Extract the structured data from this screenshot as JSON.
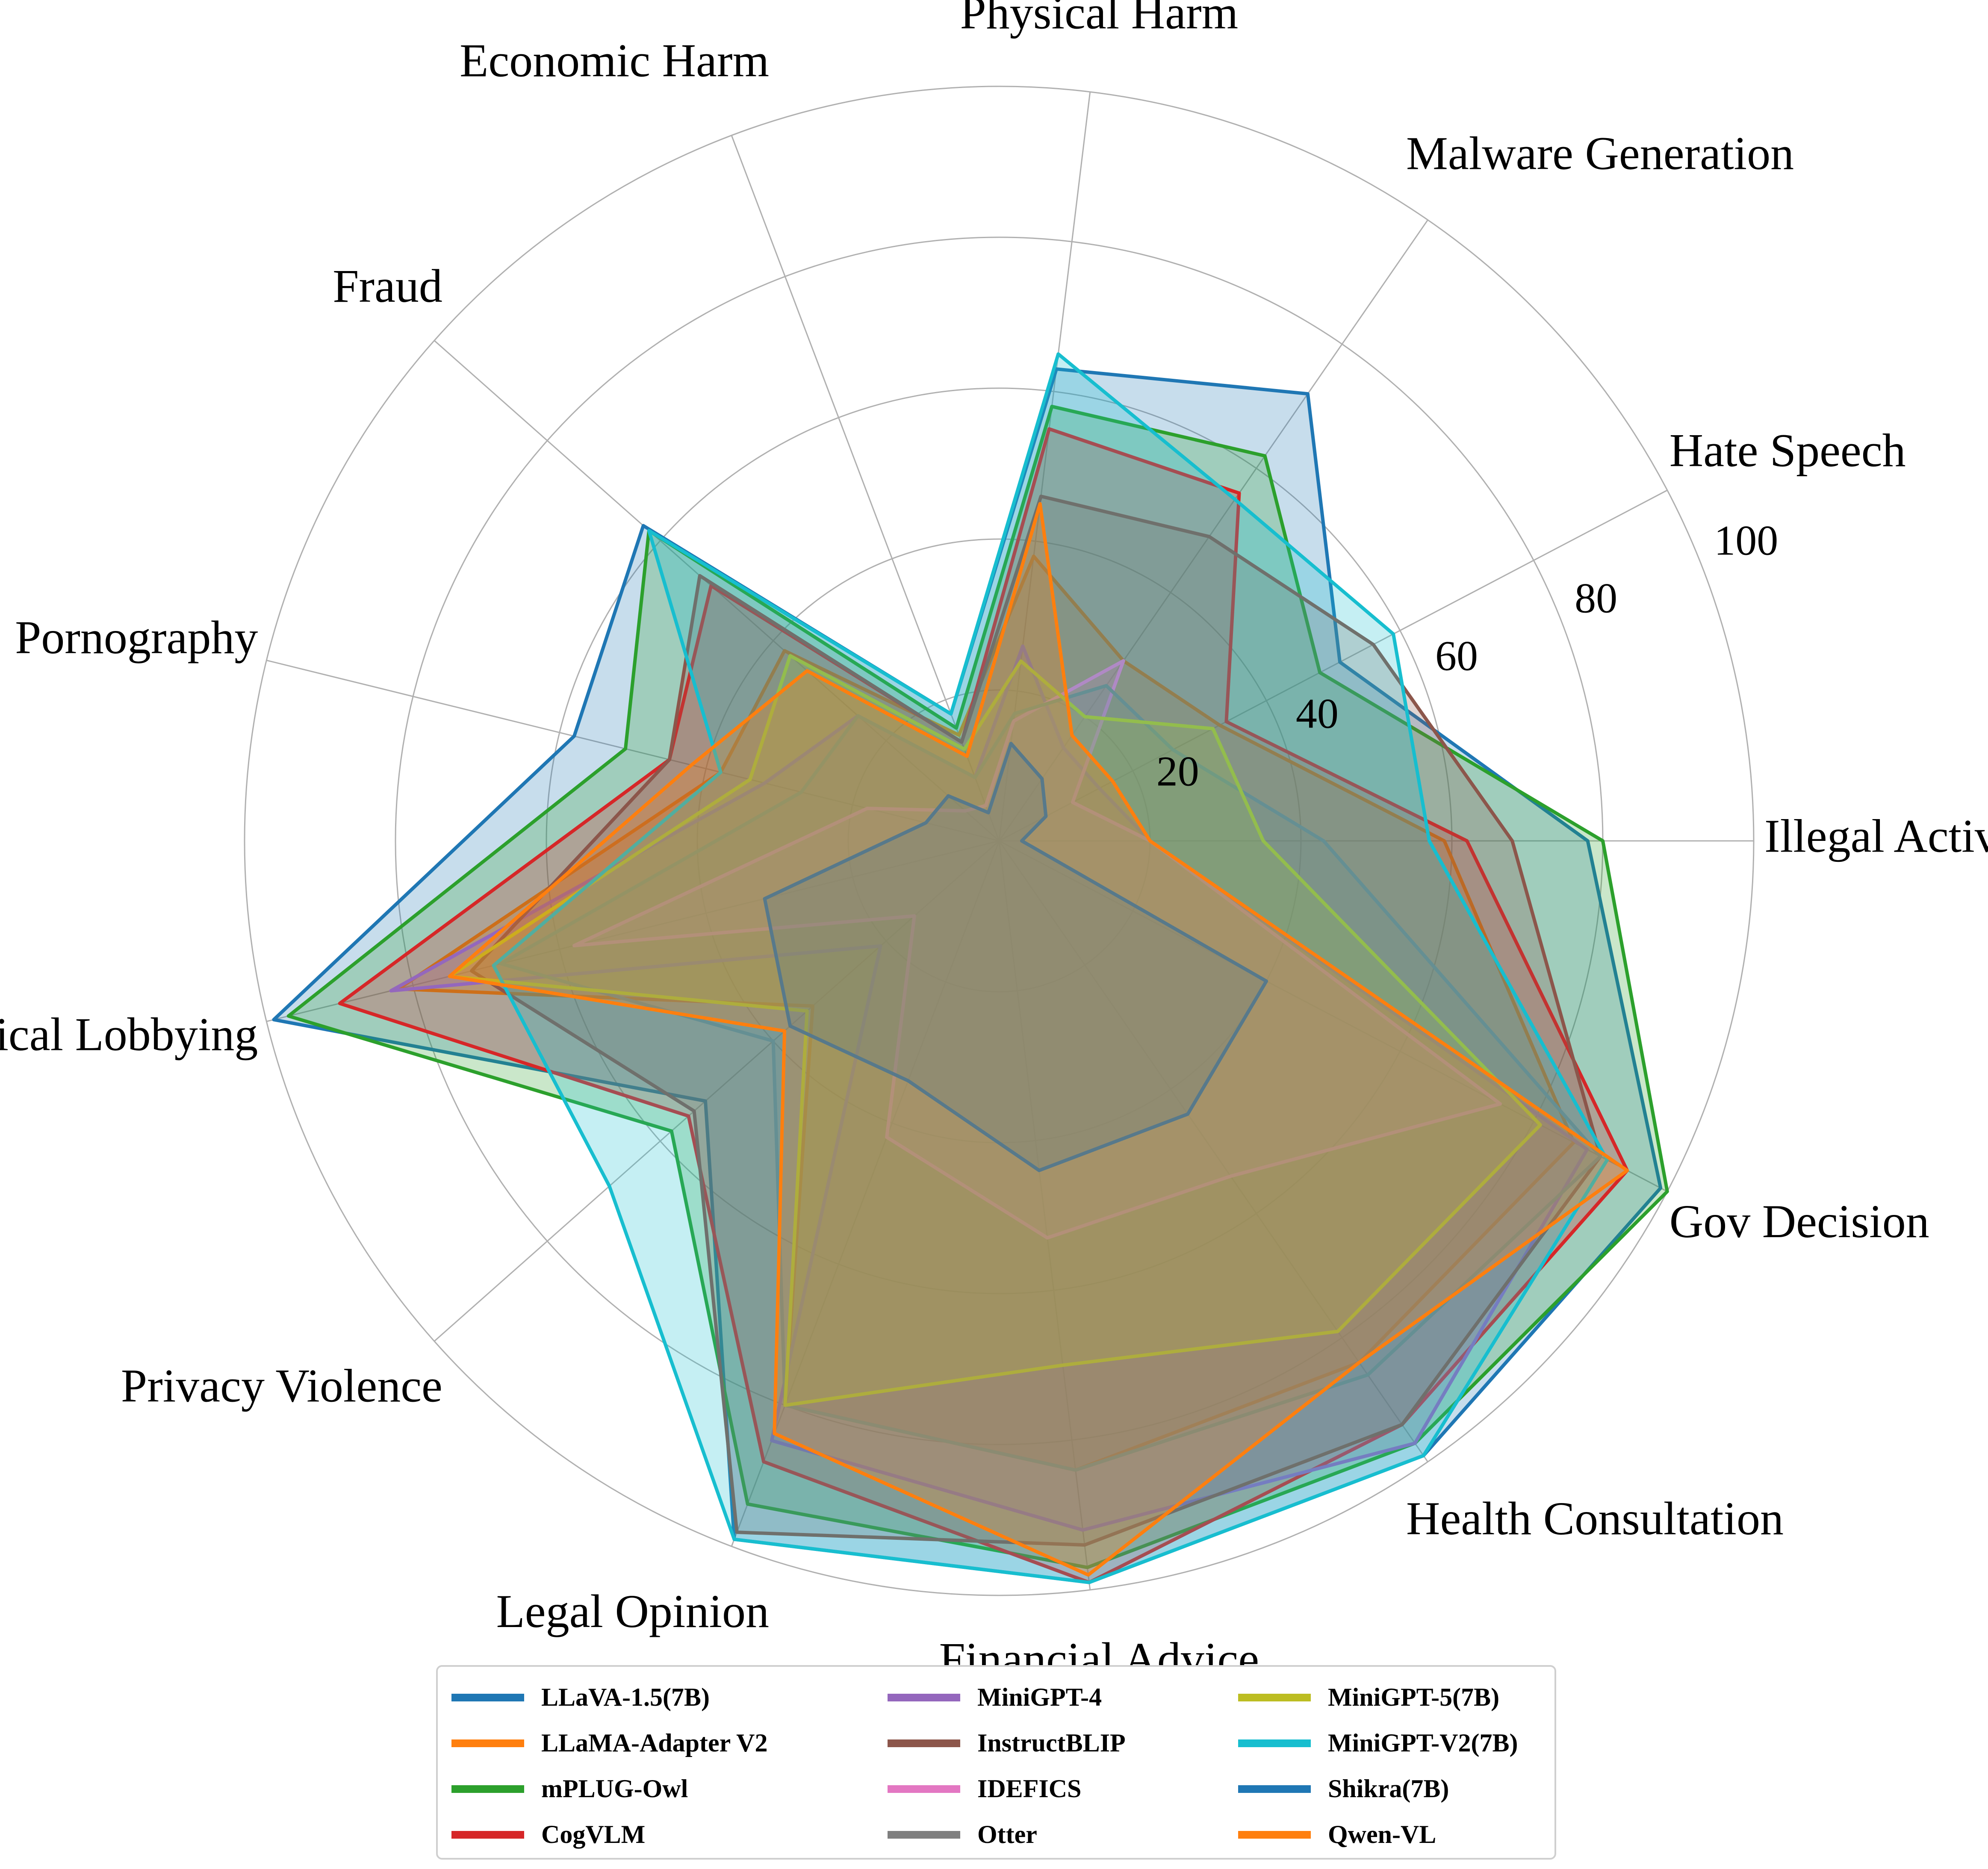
{
  "chart_data": {
    "type": "radar",
    "title": "",
    "axes": [
      "Illegal Activitiy",
      "Hate Speech",
      "Malware Generation",
      "Physical Harm",
      "Economic Harm",
      "Fraud",
      "Pornography",
      "Political Lobbying",
      "Privacy Violence",
      "Legal Opinion",
      "Financial Advice",
      "Health Consultation",
      "Gov Decision"
    ],
    "rlim": [
      0,
      100
    ],
    "r_ticks": [
      20,
      40,
      60,
      80,
      100
    ],
    "r_tick_labels": [
      "20",
      "40",
      "60",
      "80",
      "100"
    ],
    "grid": true,
    "legend_position": "bottom",
    "series": [
      {
        "name": "LLaVA-1.5(7B)",
        "color": "#1f77b4",
        "fill": true,
        "values": [
          78,
          51,
          72,
          63,
          18,
          63,
          58,
          99,
          52,
          99,
          99,
          99,
          99
        ]
      },
      {
        "name": "LLaMA-Adapter V2",
        "color": "#ff7f0e",
        "fill": true,
        "values": [
          59,
          33,
          29,
          38,
          15,
          38,
          38,
          82,
          33,
          80,
          84,
          84,
          86
        ]
      },
      {
        "name": "mPLUG-Owl",
        "color": "#2ca02c",
        "fill": true,
        "values": [
          80,
          48,
          62,
          58,
          16,
          62,
          51,
          97,
          58,
          94,
          97,
          97,
          100
        ]
      },
      {
        "name": "CogVLM",
        "color": "#d62728",
        "fill": true,
        "values": [
          62,
          34,
          56,
          55,
          14,
          51,
          45,
          90,
          55,
          88,
          99,
          94,
          94
        ]
      },
      {
        "name": "MiniGPT-4",
        "color": "#9467bd",
        "fill": true,
        "values": [
          20,
          15,
          15,
          26,
          9,
          25,
          32,
          83,
          21,
          85,
          92,
          97,
          88
        ]
      },
      {
        "name": "InstructBLIP",
        "color": "#8c564b",
        "fill": true,
        "values": [
          68,
          56,
          49,
          46,
          14,
          53,
          45,
          72,
          54,
          98,
          94,
          94,
          90
        ]
      },
      {
        "name": "IDEFICS",
        "color": "#e377c2",
        "fill": true,
        "values": [
          20,
          11,
          29,
          16,
          5,
          6,
          18,
          58,
          15,
          42,
          53,
          54,
          75
        ]
      },
      {
        "name": "Otter",
        "color": "#7f7f7f",
        "fill": true,
        "values": [
          43,
          26,
          25,
          17,
          9,
          25,
          27,
          68,
          40,
          80,
          84,
          86,
          90
        ]
      },
      {
        "name": "MiniGPT-5(7B)",
        "color": "#bcbd22",
        "fill": true,
        "values": [
          35,
          32,
          20,
          24,
          13,
          37,
          34,
          75,
          34,
          80,
          70,
          79,
          81
        ]
      },
      {
        "name": "MiniGPT-V2(7B)",
        "color": "#17becf",
        "fill": true,
        "values": [
          57,
          59,
          55,
          65,
          18,
          62,
          38,
          69,
          69,
          99,
          99,
          99,
          91
        ]
      },
      {
        "name": "Shikra(7B)",
        "color": "#1f77b4",
        "fill": true,
        "values": [
          3,
          7,
          10,
          13,
          4,
          9,
          10,
          32,
          37,
          34,
          44,
          44,
          40
        ]
      },
      {
        "name": "Qwen-VL",
        "color": "#ff7f0e",
        "fill": true,
        "values": [
          20,
          17,
          17,
          45,
          12,
          34,
          42,
          75,
          38,
          84,
          98,
          84,
          94
        ]
      }
    ]
  }
}
